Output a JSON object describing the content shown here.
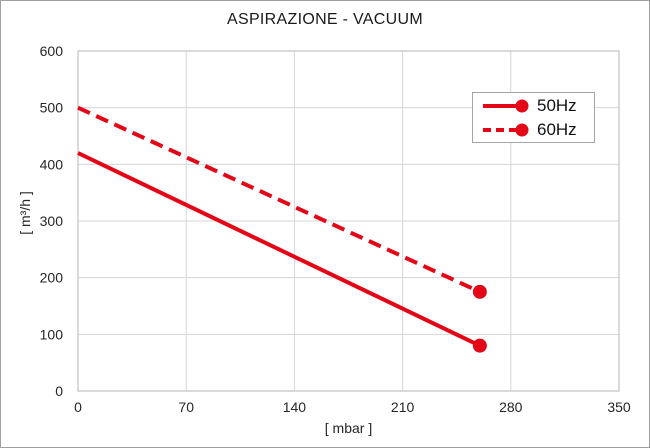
{
  "title": "ASPIRAZIONE - VACUUM",
  "colors": {
    "series_red": "#e30617",
    "grid": "#d6d6d6",
    "plot_border": "#c2c2c2",
    "text": "#262626",
    "title_text": "#1a1a1a",
    "legend_border": "#a6a6a6",
    "outer_border": "#a0a0a0",
    "background": "#ffffff"
  },
  "chart_data": {
    "type": "line",
    "title": "ASPIRAZIONE - VACUUM",
    "xlabel": "[ mbar ]",
    "ylabel": "[ m³/h ]",
    "xlim": [
      0,
      350
    ],
    "ylim": [
      0,
      600
    ],
    "xticks": [
      0,
      70,
      140,
      210,
      280,
      350
    ],
    "yticks": [
      0,
      100,
      200,
      300,
      400,
      500,
      600
    ],
    "grid": true,
    "legend": {
      "position": "top-right",
      "entries": [
        "50Hz",
        "60Hz"
      ]
    },
    "series": [
      {
        "name": "50Hz",
        "line_style": "solid",
        "color": "#e30617",
        "marker": "dot-at-end",
        "points": [
          [
            0,
            420
          ],
          [
            260,
            80
          ]
        ]
      },
      {
        "name": "60Hz",
        "line_style": "dashed",
        "color": "#e30617",
        "marker": "dot-at-end",
        "points": [
          [
            0,
            500
          ],
          [
            260,
            175
          ]
        ]
      }
    ]
  }
}
